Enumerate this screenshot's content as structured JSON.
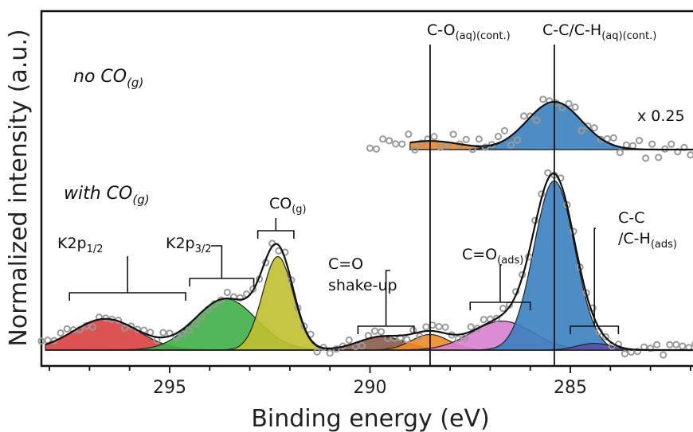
{
  "chart_data": {
    "type": "line",
    "xlabel": "Binding energy (eV)",
    "ylabel": "Normalized intensity (a.u.)",
    "xlim": [
      298.2,
      281.7
    ],
    "x_reversed": true,
    "xticks": [
      295,
      290,
      285
    ],
    "xtick_labels": [
      "295",
      "290",
      "285"
    ],
    "grid": false,
    "conditions": {
      "top": {
        "main": "no CO",
        "sub": "(g)",
        "scale_label": "x 0.25"
      },
      "bottom": {
        "main": "with CO",
        "sub": "(g)"
      }
    },
    "reference_lines": [
      {
        "x": 288.5,
        "main": "C-O",
        "sub": "(aq)(cont.)"
      },
      {
        "x": 285.4,
        "main": "C-C/C-H",
        "sub": "(aq)(cont.)"
      }
    ],
    "series_top": [
      {
        "name": "C-O(aq)(cont.)",
        "center": 288.5,
        "height": 0.18,
        "fwhm": 1.8,
        "color": "#e8862a"
      },
      {
        "name": "C-C/C-H(aq)(cont.)",
        "center": 285.4,
        "height": 1.0,
        "fwhm": 1.6,
        "color": "#3b7fbf"
      }
    ],
    "series_bottom": [
      {
        "name": "K2p1/2",
        "center": 296.6,
        "height": 0.14,
        "fwhm": 1.9,
        "color": "#d94040"
      },
      {
        "name": "K2p3/2",
        "center": 293.6,
        "height": 0.23,
        "fwhm": 1.8,
        "color": "#3fae49"
      },
      {
        "name": "CO(g)",
        "center": 292.3,
        "height": 0.42,
        "fwhm": 0.9,
        "color": "#c0c030"
      },
      {
        "name": "C=O shake-up",
        "center": 289.7,
        "height": 0.06,
        "fwhm": 1.4,
        "color": "#8b5a4a"
      },
      {
        "name": "C=O shake-up 2",
        "center": 288.5,
        "height": 0.07,
        "fwhm": 1.1,
        "color": "#f08a24"
      },
      {
        "name": "C=O(ads)",
        "center": 286.7,
        "height": 0.13,
        "fwhm": 1.8,
        "color": "#d77fd0"
      },
      {
        "name": "C-C/C-H(ads)",
        "center": 285.4,
        "height": 0.76,
        "fwhm": 1.2,
        "color": "#3b7fbf"
      },
      {
        "name": "C-C/C-H(ads) minor",
        "center": 284.4,
        "height": 0.03,
        "fwhm": 1.0,
        "color": "#5a4fae"
      }
    ],
    "peak_labels": [
      {
        "main": "K2p",
        "sub": "1/2"
      },
      {
        "main": "K2p",
        "sub": "3/2"
      },
      {
        "main": "CO",
        "sub": "(g)"
      },
      {
        "line1": "C=O",
        "line2": "shake-up"
      },
      {
        "main": "C=O",
        "sub": "(ads)"
      },
      {
        "line1": "C-C",
        "line2_main": "/C-H",
        "line2_sub": "(ads)"
      }
    ]
  }
}
